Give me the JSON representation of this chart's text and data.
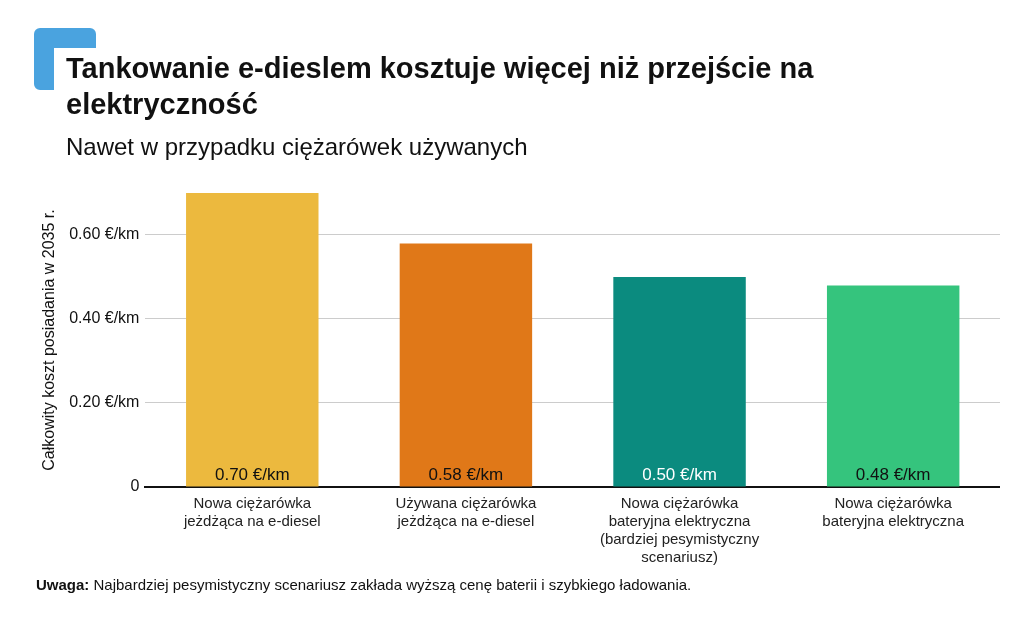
{
  "chart_data": {
    "type": "bar",
    "title": "Tankowanie e-dieslem kosztuje więcej niż przejście na elektryczność",
    "subtitle": "Nawet w przypadku ciężarówek używanych",
    "ylabel": "Całkowity koszt posiadania w 2035 r.",
    "categories": [
      "Nowa ciężarówka jeżdżąca na e-diesel",
      "Używana ciężarówka jeżdżąca na e-diesel",
      "Nowa ciężarówka bateryjna elektryczna (bardziej pesymistyczny scenariusz)",
      "Nowa ciężarówka bateryjna elektryczna"
    ],
    "values": [
      0.7,
      0.58,
      0.5,
      0.48
    ],
    "colors": [
      "#ecb93e",
      "#e07818",
      "#0b8b7f",
      "#35c47d"
    ],
    "value_labels": [
      "0.70 €/km",
      "0.58 €/km",
      "0.50 €/km",
      "0.48 €/km"
    ],
    "yticks": [
      0,
      {
        "value": 0.2,
        "label": "0.20 €/km"
      },
      {
        "value": 0.4,
        "label": "0.40 €/km"
      },
      {
        "value": 0.6,
        "label": "0.60 €/km"
      }
    ],
    "ylim": [
      0,
      0.7
    ],
    "grid": "y",
    "legend": false,
    "annotations": [
      "Uwaga: Najbardziej pesymistyczny scenariusz zakłada wyższą cenę baterii i szybkiego ładowania."
    ]
  }
}
